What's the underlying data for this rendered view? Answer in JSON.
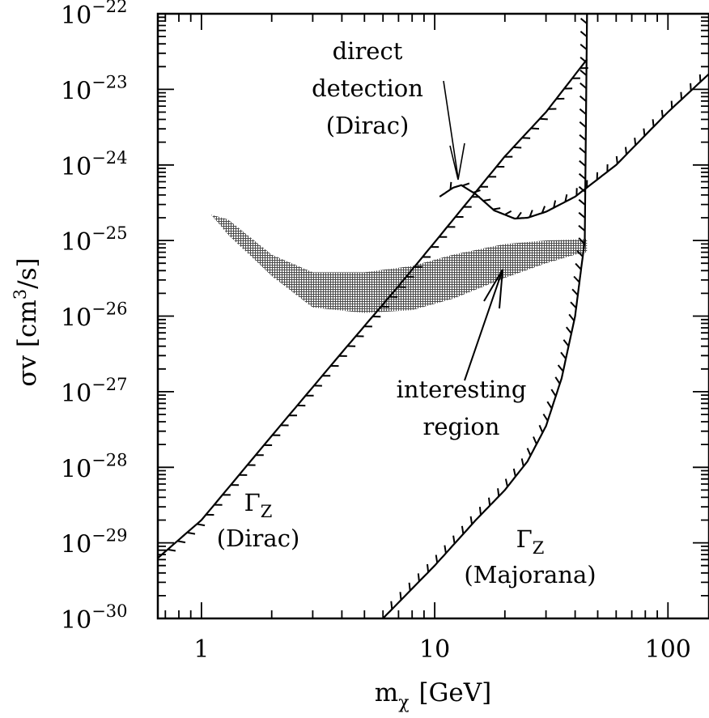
{
  "chart_data": {
    "type": "line",
    "title": "",
    "xlabel": "m",
    "xlabel_sub": "χ",
    "xlabel_unit": "[GeV]",
    "ylabel": "σv",
    "ylabel_unit_pre": "[cm",
    "ylabel_unit_sup": "3",
    "ylabel_unit_post": "/s]",
    "x_scale": "log",
    "y_scale": "log",
    "xlim": [
      0.65,
      150
    ],
    "ylim": [
      1e-30,
      1e-22
    ],
    "x_ticks": [
      {
        "value": 1,
        "label": "1"
      },
      {
        "value": 10,
        "label": "10"
      },
      {
        "value": 100,
        "label": "100"
      }
    ],
    "y_ticks": [
      {
        "value": 1e-30,
        "base": "10",
        "exp": "−30"
      },
      {
        "value": 1e-29,
        "base": "10",
        "exp": "−29"
      },
      {
        "value": 1e-28,
        "base": "10",
        "exp": "−28"
      },
      {
        "value": 1e-27,
        "base": "10",
        "exp": "−27"
      },
      {
        "value": 1e-26,
        "base": "10",
        "exp": "−26"
      },
      {
        "value": 1e-25,
        "base": "10",
        "exp": "−25"
      },
      {
        "value": 1e-24,
        "base": "10",
        "exp": "−24"
      },
      {
        "value": 1e-23,
        "base": "10",
        "exp": "−23"
      },
      {
        "value": 1e-22,
        "base": "10",
        "exp": "−22"
      }
    ],
    "series": [
      {
        "label_lines": [
          "Γ_Z",
          "(Dirac)"
        ],
        "x": [
          0.65,
          1,
          2,
          4,
          7,
          10,
          20,
          30,
          45
        ],
        "y": [
          6.3e-30,
          2e-29,
          2.6e-28,
          3.3e-27,
          2.5e-26,
          9.5e-26,
          1.3e-24,
          5e-24,
          2.5e-23
        ]
      },
      {
        "label_lines": [
          "Γ_Z",
          "(Majorana)"
        ],
        "x": [
          6,
          10,
          15,
          20,
          25,
          30,
          35,
          40,
          44,
          45
        ],
        "y": [
          1e-30,
          5e-30,
          2e-29,
          5e-29,
          1.2e-28,
          3.5e-28,
          1.5e-27,
          1e-26,
          1e-25,
          1e-22
        ]
      },
      {
        "label_lines": [
          "direct",
          "detection",
          "(Dirac)"
        ],
        "x": [
          10.5,
          12,
          13,
          15,
          18,
          22,
          25,
          30,
          40,
          60,
          100,
          150
        ],
        "y": [
          3.8e-25,
          5e-25,
          5.4e-25,
          4.1e-25,
          2.5e-25,
          1.95e-25,
          2e-25,
          2.4e-25,
          3.8e-25,
          1e-24,
          5e-24,
          1.6e-23
        ]
      }
    ],
    "shaded_region": {
      "label_lines": [
        "interesting",
        "region"
      ],
      "upper": {
        "x": [
          1.1,
          1.3,
          2,
          3,
          5,
          8,
          12,
          20,
          30,
          40,
          45
        ],
        "y": [
          2.2e-25,
          1.9e-25,
          6.5e-26,
          3.8e-26,
          3.8e-26,
          4.6e-26,
          6.5e-26,
          9e-26,
          1e-25,
          1.03e-25,
          1.05e-25
        ]
      },
      "lower": {
        "x": [
          1.1,
          1.3,
          2,
          3,
          5,
          8,
          12,
          20,
          30,
          40,
          45
        ],
        "y": [
          2.2e-25,
          1.2e-25,
          3.4e-26,
          1.3e-26,
          1.1e-26,
          1.2e-26,
          1.7e-26,
          3.2e-26,
          5e-26,
          6.5e-26,
          7e-26
        ]
      }
    },
    "annotations": [
      {
        "text_lines": [
          "direct",
          "detection",
          "(Dirac)"
        ]
      },
      {
        "text_lines": [
          "interesting",
          "region"
        ]
      },
      {
        "text_lines": [
          "Γ_Z",
          "(Dirac)"
        ]
      },
      {
        "text_lines": [
          "Γ_Z",
          "(Majorana)"
        ]
      }
    ],
    "grid": false,
    "legend": "none"
  }
}
